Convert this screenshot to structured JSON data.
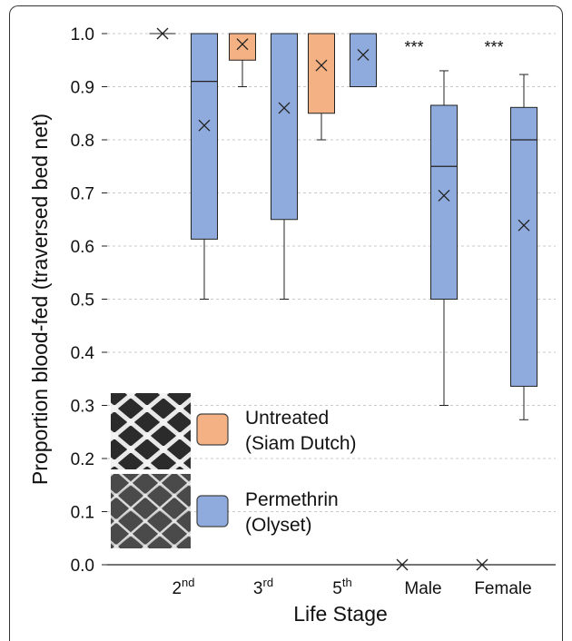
{
  "chart_data": {
    "type": "box",
    "ylabel": "Proportion blood-fed (traversed bed net)",
    "xlabel": "Life Stage",
    "ylim": [
      0,
      1.0
    ],
    "yticks": [
      "0.0",
      "0.1",
      "0.2",
      "0.3",
      "0.4",
      "0.5",
      "0.6",
      "0.7",
      "0.8",
      "0.9",
      "1.0"
    ],
    "grid": true,
    "categories": [
      {
        "base": "2",
        "sup": "nd"
      },
      {
        "base": "3",
        "sup": "rd"
      },
      {
        "base": "5",
        "sup": "th"
      },
      {
        "base": "Male",
        "sup": ""
      },
      {
        "base": "Female",
        "sup": ""
      }
    ],
    "series": [
      {
        "name": "Untreated (Siam Dutch)",
        "color": "#f4b183",
        "boxes": [
          {
            "category": 0,
            "min": 1.0,
            "q1": 1.0,
            "median": 1.0,
            "q3": 1.0,
            "max": 1.0,
            "mean": 1.0
          },
          {
            "category": 1,
            "min": 0.9,
            "q1": 0.95,
            "median": 1.0,
            "q3": 1.0,
            "max": 1.0,
            "mean": 0.98
          },
          {
            "category": 2,
            "min": 0.8,
            "q1": 0.85,
            "median": 1.0,
            "q3": 1.0,
            "max": 1.0,
            "mean": 0.94
          },
          {
            "category": 3,
            "min": 0.0,
            "q1": 0.0,
            "median": 0.0,
            "q3": 0.0,
            "max": 0.0,
            "mean": 0.0
          },
          {
            "category": 4,
            "min": 0.0,
            "q1": 0.0,
            "median": 0.0,
            "q3": 0.0,
            "max": 0.0,
            "mean": 0.0
          }
        ]
      },
      {
        "name": "Permethrin (Olyset)",
        "color": "#8faadc",
        "boxes": [
          {
            "category": 0,
            "min": 0.5,
            "q1": 0.613,
            "median": 0.91,
            "q3": 1.0,
            "max": 1.0,
            "mean": 0.827
          },
          {
            "category": 1,
            "min": 0.5,
            "q1": 0.65,
            "median": 1.0,
            "q3": 1.0,
            "max": 1.0,
            "mean": 0.86
          },
          {
            "category": 2,
            "min": 0.9,
            "q1": 0.9,
            "median": 1.0,
            "q3": 1.0,
            "max": 1.0,
            "mean": 0.96
          },
          {
            "category": 3,
            "min": 0.3,
            "q1": 0.5,
            "median": 0.75,
            "q3": 0.865,
            "max": 0.93,
            "mean": 0.695
          },
          {
            "category": 4,
            "min": 0.273,
            "q1": 0.336,
            "median": 0.8,
            "q3": 0.861,
            "max": 0.923,
            "mean": 0.639
          }
        ]
      }
    ],
    "annotations": [
      {
        "category": 3,
        "text": "***"
      },
      {
        "category": 4,
        "text": "***"
      }
    ],
    "legend": {
      "position": "bottom-left",
      "items": [
        {
          "line1": "Untreated",
          "line2": "(Siam Dutch)"
        },
        {
          "line1": "Permethrin",
          "line2": "(Olyset)"
        }
      ]
    }
  }
}
